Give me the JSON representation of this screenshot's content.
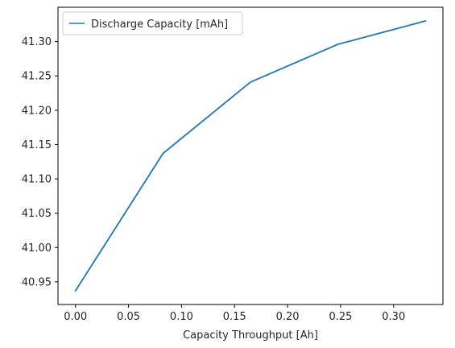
{
  "chart_data": {
    "type": "line",
    "xlabel": "Capacity Throughput [Ah]",
    "ylabel": "",
    "xlim": [
      -0.0165,
      0.3465
    ],
    "ylim": [
      40.917,
      41.35
    ],
    "x_ticks": [
      0.0,
      0.05,
      0.1,
      0.15,
      0.2,
      0.25,
      0.3
    ],
    "x_tick_labels": [
      "0.00",
      "0.05",
      "0.10",
      "0.15",
      "0.20",
      "0.25",
      "0.30"
    ],
    "y_ticks": [
      40.95,
      41.0,
      41.05,
      41.1,
      41.15,
      41.2,
      41.25,
      41.3
    ],
    "y_tick_labels": [
      "40.95",
      "41.00",
      "41.05",
      "41.10",
      "41.15",
      "41.20",
      "41.25",
      "41.30"
    ],
    "grid": false,
    "legend_position": "top-left",
    "series": [
      {
        "name": "Discharge Capacity [mAh]",
        "color": "#1f77b4",
        "x": [
          0.0,
          0.0825,
          0.165,
          0.2475,
          0.33
        ],
        "y": [
          40.937,
          41.137,
          41.241,
          41.296,
          41.33
        ]
      }
    ]
  }
}
